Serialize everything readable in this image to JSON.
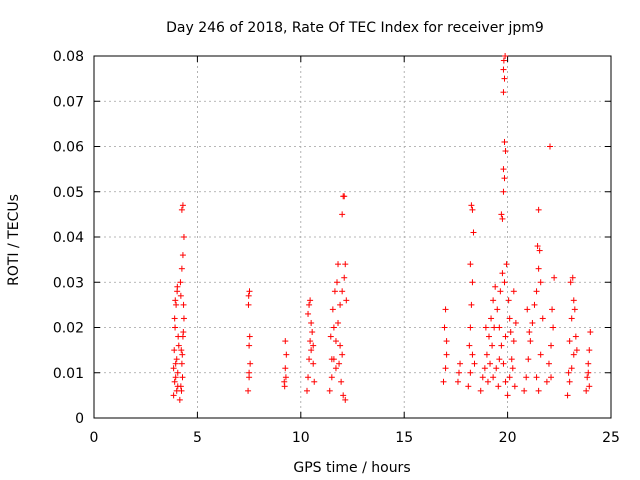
{
  "chart_data": {
    "type": "scatter",
    "title": "Day 246 of 2018, Rate Of TEC Index for receiver jpm9",
    "xlabel": "GPS time / hours",
    "ylabel": "ROTI / TECUs",
    "xlim": [
      0,
      25
    ],
    "ylim": [
      0,
      0.08
    ],
    "xticks": [
      0,
      5,
      10,
      15,
      20,
      25
    ],
    "yticks": [
      0,
      0.01,
      0.02,
      0.03,
      0.04,
      0.05,
      0.06,
      0.07,
      0.08
    ],
    "xtick_labels": [
      "0",
      "5",
      "10",
      "15",
      "20",
      "25"
    ],
    "ytick_labels": [
      "0",
      "0.01",
      "0.02",
      "0.03",
      "0.04",
      "0.05",
      "0.06",
      "0.07",
      "0.08"
    ],
    "grid": true,
    "marker": "+",
    "color": "#ff0000",
    "series": [
      {
        "name": "ROTI",
        "points": [
          [
            3.85,
            0.005
          ],
          [
            3.9,
            0.008
          ],
          [
            3.95,
            0.012
          ],
          [
            4.0,
            0.006
          ],
          [
            4.05,
            0.01
          ],
          [
            3.88,
            0.015
          ],
          [
            3.92,
            0.02
          ],
          [
            3.97,
            0.025
          ],
          [
            4.02,
            0.028
          ],
          [
            4.07,
            0.018
          ],
          [
            3.9,
            0.022
          ],
          [
            4.0,
            0.013
          ],
          [
            3.95,
            0.009
          ],
          [
            4.05,
            0.007
          ],
          [
            3.85,
            0.011
          ],
          [
            4.1,
            0.016
          ],
          [
            3.93,
            0.026
          ],
          [
            4.03,
            0.029
          ],
          [
            4.15,
            0.004
          ],
          [
            4.2,
            0.007
          ],
          [
            4.25,
            0.012
          ],
          [
            4.3,
            0.018
          ],
          [
            4.35,
            0.022
          ],
          [
            4.2,
            0.027
          ],
          [
            4.25,
            0.033
          ],
          [
            4.3,
            0.036
          ],
          [
            4.35,
            0.04
          ],
          [
            4.25,
            0.046
          ],
          [
            4.3,
            0.047
          ],
          [
            4.22,
            0.015
          ],
          [
            4.28,
            0.009
          ],
          [
            4.33,
            0.025
          ],
          [
            4.18,
            0.03
          ],
          [
            4.32,
            0.019
          ],
          [
            4.27,
            0.014
          ],
          [
            4.23,
            0.006
          ],
          [
            7.45,
            0.006
          ],
          [
            7.5,
            0.009
          ],
          [
            7.55,
            0.012
          ],
          [
            7.5,
            0.016
          ],
          [
            7.48,
            0.027
          ],
          [
            7.52,
            0.028
          ],
          [
            7.47,
            0.025
          ],
          [
            7.53,
            0.018
          ],
          [
            7.5,
            0.01
          ],
          [
            9.2,
            0.008
          ],
          [
            9.25,
            0.011
          ],
          [
            9.3,
            0.014
          ],
          [
            9.25,
            0.017
          ],
          [
            9.22,
            0.007
          ],
          [
            9.28,
            0.009
          ],
          [
            10.3,
            0.006
          ],
          [
            10.35,
            0.009
          ],
          [
            10.4,
            0.013
          ],
          [
            10.45,
            0.017
          ],
          [
            10.5,
            0.021
          ],
          [
            10.4,
            0.025
          ],
          [
            10.45,
            0.026
          ],
          [
            10.55,
            0.019
          ],
          [
            10.6,
            0.012
          ],
          [
            10.65,
            0.008
          ],
          [
            10.35,
            0.023
          ],
          [
            10.5,
            0.015
          ],
          [
            10.6,
            0.016
          ],
          [
            11.4,
            0.006
          ],
          [
            11.5,
            0.009
          ],
          [
            11.6,
            0.013
          ],
          [
            11.7,
            0.017
          ],
          [
            11.8,
            0.021
          ],
          [
            11.9,
            0.025
          ],
          [
            12.0,
            0.028
          ],
          [
            12.1,
            0.031
          ],
          [
            11.55,
            0.024
          ],
          [
            11.65,
            0.028
          ],
          [
            11.75,
            0.03
          ],
          [
            11.85,
            0.012
          ],
          [
            11.95,
            0.008
          ],
          [
            12.05,
            0.005
          ],
          [
            12.15,
            0.004
          ],
          [
            11.45,
            0.018
          ],
          [
            11.6,
            0.02
          ],
          [
            11.8,
            0.034
          ],
          [
            12.0,
            0.045
          ],
          [
            12.05,
            0.049
          ],
          [
            12.1,
            0.049
          ],
          [
            12.15,
            0.034
          ],
          [
            12.2,
            0.026
          ],
          [
            11.7,
            0.011
          ],
          [
            11.9,
            0.016
          ],
          [
            12.0,
            0.014
          ],
          [
            11.5,
            0.013
          ],
          [
            16.9,
            0.008
          ],
          [
            17.0,
            0.011
          ],
          [
            17.05,
            0.014
          ],
          [
            16.95,
            0.02
          ],
          [
            17.0,
            0.024
          ],
          [
            17.05,
            0.017
          ],
          [
            17.6,
            0.008
          ],
          [
            17.7,
            0.012
          ],
          [
            17.65,
            0.01
          ],
          [
            18.1,
            0.007
          ],
          [
            18.2,
            0.01
          ],
          [
            18.3,
            0.014
          ],
          [
            18.2,
            0.02
          ],
          [
            18.25,
            0.025
          ],
          [
            18.3,
            0.03
          ],
          [
            18.2,
            0.034
          ],
          [
            18.35,
            0.041
          ],
          [
            18.3,
            0.046
          ],
          [
            18.25,
            0.047
          ],
          [
            18.4,
            0.012
          ],
          [
            18.15,
            0.016
          ],
          [
            18.7,
            0.006
          ],
          [
            18.8,
            0.009
          ],
          [
            18.9,
            0.011
          ],
          [
            19.0,
            0.014
          ],
          [
            19.1,
            0.018
          ],
          [
            19.2,
            0.022
          ],
          [
            19.3,
            0.026
          ],
          [
            19.4,
            0.029
          ],
          [
            19.5,
            0.024
          ],
          [
            19.6,
            0.02
          ],
          [
            19.7,
            0.016
          ],
          [
            19.8,
            0.012
          ],
          [
            19.9,
            0.008
          ],
          [
            20.0,
            0.005
          ],
          [
            20.1,
            0.009
          ],
          [
            20.2,
            0.013
          ],
          [
            20.3,
            0.017
          ],
          [
            20.4,
            0.021
          ],
          [
            19.05,
            0.008
          ],
          [
            19.15,
            0.012
          ],
          [
            19.25,
            0.016
          ],
          [
            19.35,
            0.02
          ],
          [
            19.45,
            0.011
          ],
          [
            19.55,
            0.007
          ],
          [
            19.65,
            0.028
          ],
          [
            19.75,
            0.032
          ],
          [
            19.85,
            0.03
          ],
          [
            19.95,
            0.034
          ],
          [
            20.05,
            0.026
          ],
          [
            20.15,
            0.019
          ],
          [
            20.25,
            0.011
          ],
          [
            20.35,
            0.007
          ],
          [
            18.95,
            0.02
          ],
          [
            19.3,
            0.009
          ],
          [
            19.6,
            0.013
          ],
          [
            19.9,
            0.018
          ],
          [
            20.1,
            0.022
          ],
          [
            20.3,
            0.028
          ],
          [
            19.7,
            0.045
          ],
          [
            19.75,
            0.044
          ],
          [
            19.8,
            0.05
          ],
          [
            19.85,
            0.053
          ],
          [
            19.8,
            0.055
          ],
          [
            19.9,
            0.059
          ],
          [
            19.85,
            0.061
          ],
          [
            19.8,
            0.072
          ],
          [
            19.85,
            0.075
          ],
          [
            19.8,
            0.077
          ],
          [
            19.82,
            0.079
          ],
          [
            19.88,
            0.08
          ],
          [
            20.8,
            0.006
          ],
          [
            20.9,
            0.009
          ],
          [
            21.0,
            0.013
          ],
          [
            21.1,
            0.017
          ],
          [
            21.2,
            0.021
          ],
          [
            21.3,
            0.025
          ],
          [
            21.4,
            0.028
          ],
          [
            21.5,
            0.033
          ],
          [
            21.45,
            0.038
          ],
          [
            21.55,
            0.037
          ],
          [
            21.5,
            0.046
          ],
          [
            21.6,
            0.03
          ],
          [
            21.7,
            0.022
          ],
          [
            21.6,
            0.014
          ],
          [
            21.4,
            0.009
          ],
          [
            21.5,
            0.006
          ],
          [
            20.95,
            0.024
          ],
          [
            21.05,
            0.019
          ],
          [
            21.9,
            0.008
          ],
          [
            22.0,
            0.012
          ],
          [
            22.1,
            0.016
          ],
          [
            22.2,
            0.02
          ],
          [
            22.15,
            0.024
          ],
          [
            22.25,
            0.031
          ],
          [
            22.05,
            0.06
          ],
          [
            22.1,
            0.009
          ],
          [
            22.9,
            0.005
          ],
          [
            23.0,
            0.008
          ],
          [
            23.1,
            0.011
          ],
          [
            23.2,
            0.014
          ],
          [
            23.3,
            0.018
          ],
          [
            23.1,
            0.022
          ],
          [
            23.2,
            0.026
          ],
          [
            23.05,
            0.03
          ],
          [
            23.15,
            0.031
          ],
          [
            23.25,
            0.024
          ],
          [
            23.35,
            0.015
          ],
          [
            22.95,
            0.01
          ],
          [
            23.0,
            0.017
          ],
          [
            23.8,
            0.006
          ],
          [
            23.85,
            0.009
          ],
          [
            23.9,
            0.012
          ],
          [
            23.95,
            0.015
          ],
          [
            24.0,
            0.019
          ],
          [
            23.9,
            0.01
          ],
          [
            23.95,
            0.007
          ]
        ]
      }
    ]
  }
}
